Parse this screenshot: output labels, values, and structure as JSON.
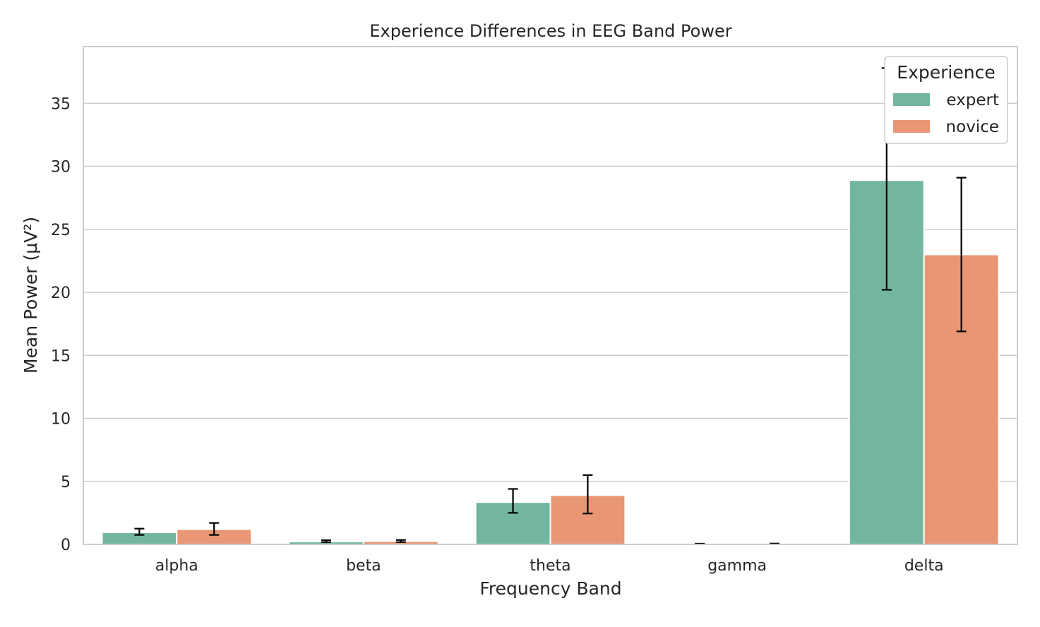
{
  "chart_data": {
    "type": "bar",
    "title": "Experience Differences in EEG Band Power",
    "xlabel": "Frequency Band",
    "ylabel": "Mean Power (μV²)",
    "categories": [
      "alpha",
      "beta",
      "theta",
      "gamma",
      "delta"
    ],
    "ylim": [
      0,
      39.5
    ],
    "yticks": [
      0,
      5,
      10,
      15,
      20,
      25,
      30,
      35
    ],
    "grid": "horizontal",
    "legend": {
      "title": "Experience",
      "placement": "top-right"
    },
    "series": [
      {
        "name": "expert",
        "color": "#72b6a1",
        "values": [
          0.95,
          0.22,
          3.35,
          0.02,
          28.9
        ],
        "error_low": [
          0.75,
          0.17,
          2.5,
          0.02,
          20.2
        ],
        "error_high": [
          1.25,
          0.33,
          4.4,
          0.06,
          37.8
        ]
      },
      {
        "name": "novice",
        "color": "#e99675",
        "values": [
          1.2,
          0.25,
          3.9,
          0.02,
          23.0
        ],
        "error_low": [
          0.75,
          0.18,
          2.45,
          0.02,
          16.9
        ],
        "error_high": [
          1.7,
          0.35,
          5.5,
          0.07,
          29.1
        ]
      }
    ]
  }
}
